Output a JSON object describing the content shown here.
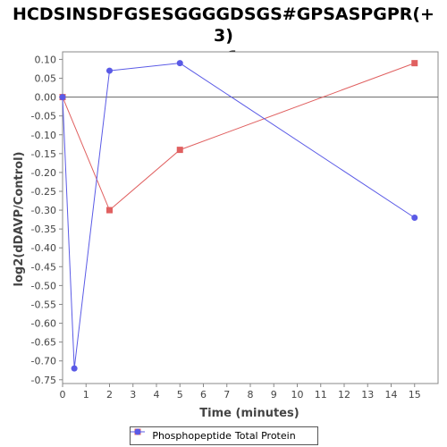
{
  "chart_data": {
    "type": "line",
    "title_line1": "HCDSINSDFGSESGGGGDSGS#GPSASPGPR(+ 3)",
    "title_line2": "_v1",
    "xlabel": "Time (minutes)",
    "ylabel": "log2(dDAVP/Control)",
    "xlim": [
      0,
      16
    ],
    "ylim": [
      -0.76,
      0.12
    ],
    "x_ticks": [
      0,
      1,
      2,
      3,
      4,
      5,
      6,
      7,
      8,
      9,
      10,
      11,
      12,
      13,
      14,
      15
    ],
    "y_ticks": [
      0.1,
      0.05,
      0.0,
      -0.05,
      -0.1,
      -0.15,
      -0.2,
      -0.25,
      -0.3,
      -0.35,
      -0.4,
      -0.45,
      -0.5,
      -0.55,
      -0.6,
      -0.65,
      -0.7,
      -0.75
    ],
    "zero_line": true,
    "grid": false,
    "legend_position": "bottom",
    "series": [
      {
        "name": "Phosphopeptide",
        "color": "#e06060",
        "marker": "square",
        "x": [
          0,
          2,
          5,
          15
        ],
        "y": [
          0.0,
          -0.3,
          -0.14,
          0.09
        ]
      },
      {
        "name": "Total Protein",
        "color": "#5a5ae6",
        "marker": "circle",
        "x": [
          0,
          0.5,
          2,
          5,
          15
        ],
        "y": [
          0.0,
          -0.72,
          0.07,
          0.09,
          -0.32
        ]
      }
    ]
  }
}
